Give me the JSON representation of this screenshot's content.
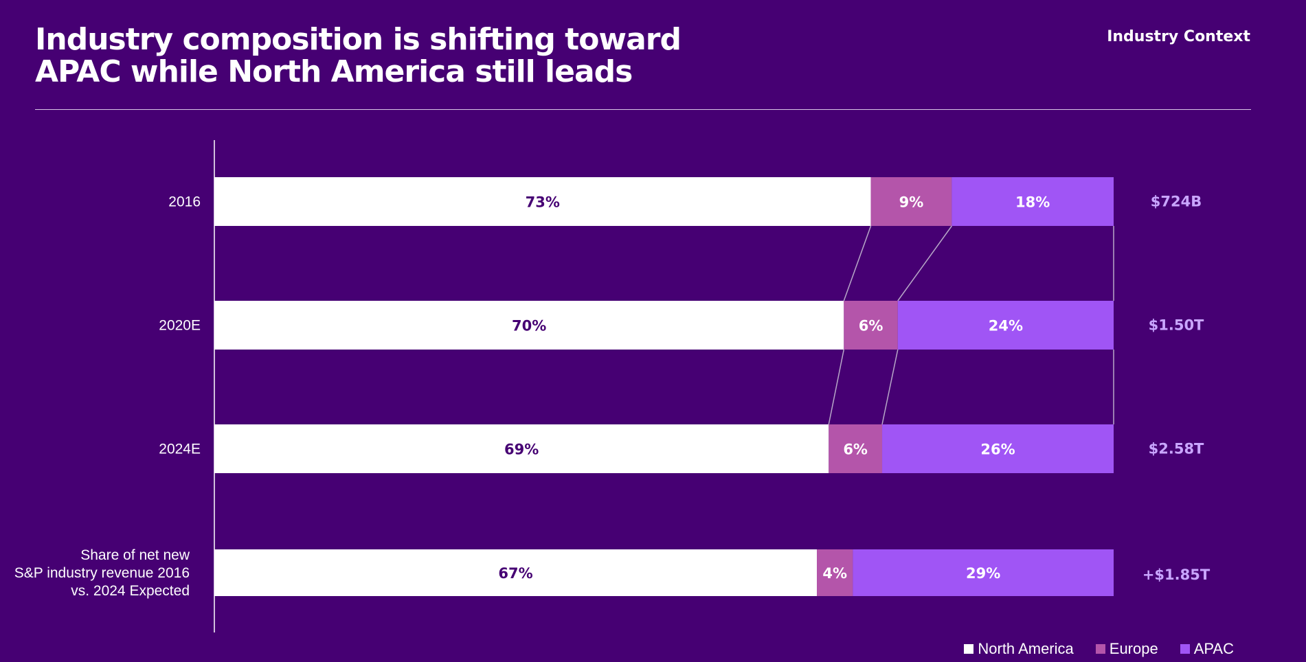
{
  "header": {
    "title_line1": "Industry composition is shifting toward",
    "title_line2": "APAC while North America still leads",
    "section_label": "Industry Context"
  },
  "colors": {
    "background": "#460073",
    "north_america": "#ffffff",
    "europe": "#b455aa",
    "apac": "#a055f5",
    "label_dark": "#460073",
    "label_light": "#ffffff",
    "total_label": "#c9a6ff",
    "connector": "#b8a8c8"
  },
  "chart_data": {
    "type": "bar",
    "orientation": "horizontal",
    "stacked": true,
    "normalized": true,
    "categories": [
      "2016",
      "2020E",
      "2024E",
      "Share of net new S&P industry revenue 2016 vs. 2024 Expected"
    ],
    "series": [
      {
        "name": "North America",
        "values": [
          73,
          70,
          69,
          67
        ],
        "labels": [
          "73%",
          "70%",
          "69%",
          "67%"
        ]
      },
      {
        "name": "Europe",
        "values": [
          9,
          6,
          6,
          4
        ],
        "labels": [
          "9%",
          "6%",
          "6%",
          "4%"
        ]
      },
      {
        "name": "APAC",
        "values": [
          18,
          24,
          26,
          29
        ],
        "labels": [
          "18%",
          "24%",
          "26%",
          "29%"
        ]
      }
    ],
    "totals": [
      "$724B",
      "$1.50T",
      "$2.58T",
      "+$1.85T"
    ],
    "connector_lines": true,
    "legend_position": "bottom-right",
    "legend": [
      "North America",
      "Europe",
      "APAC"
    ],
    "grid": false
  }
}
